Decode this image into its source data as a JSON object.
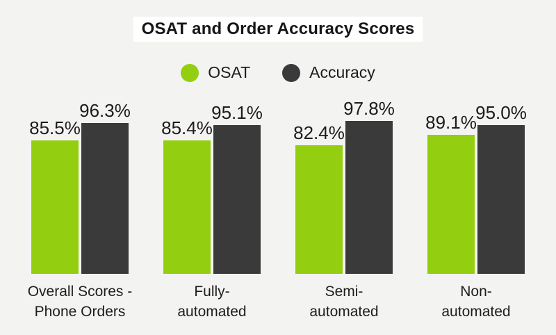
{
  "title": "OSAT and Order Accuracy Scores",
  "legend": {
    "items": [
      {
        "label": "OSAT",
        "color": "#94CE11"
      },
      {
        "label": "Accuracy",
        "color": "#3A3A3A"
      }
    ]
  },
  "colors": {
    "background": "#F3F4F1",
    "title_background": "#FFFFFF",
    "text": "#1C1C1C",
    "osat_green": "#94CE11",
    "accuracy_dark": "#3A3A3A"
  },
  "chart_data": {
    "type": "bar",
    "title": "OSAT and Order Accuracy Scores",
    "categories": [
      "Overall Scores - Phone Orders",
      "Fully-automated",
      "Semi-automated",
      "Non-automated"
    ],
    "category_lines": [
      [
        "Overall Scores -",
        "Phone Orders"
      ],
      [
        "Fully-",
        "automated"
      ],
      [
        "Semi-",
        "automated"
      ],
      [
        "Non-",
        "automated"
      ]
    ],
    "series": [
      {
        "name": "OSAT",
        "color": "#94CE11",
        "values": [
          85.5,
          85.4,
          82.4,
          89.1
        ],
        "labels": [
          "85.5%",
          "85.4%",
          "82.4%",
          "89.1%"
        ]
      },
      {
        "name": "Accuracy",
        "color": "#3A3A3A",
        "values": [
          96.3,
          95.1,
          97.8,
          95.0
        ],
        "labels": [
          "96.3%",
          "95.1%",
          "97.8%",
          "95.0%"
        ]
      }
    ],
    "ylim": [
      0,
      100
    ],
    "value_suffix": "%",
    "legend_position": "top",
    "grid": false,
    "axes_visible": false,
    "value_labels_shown": true
  }
}
